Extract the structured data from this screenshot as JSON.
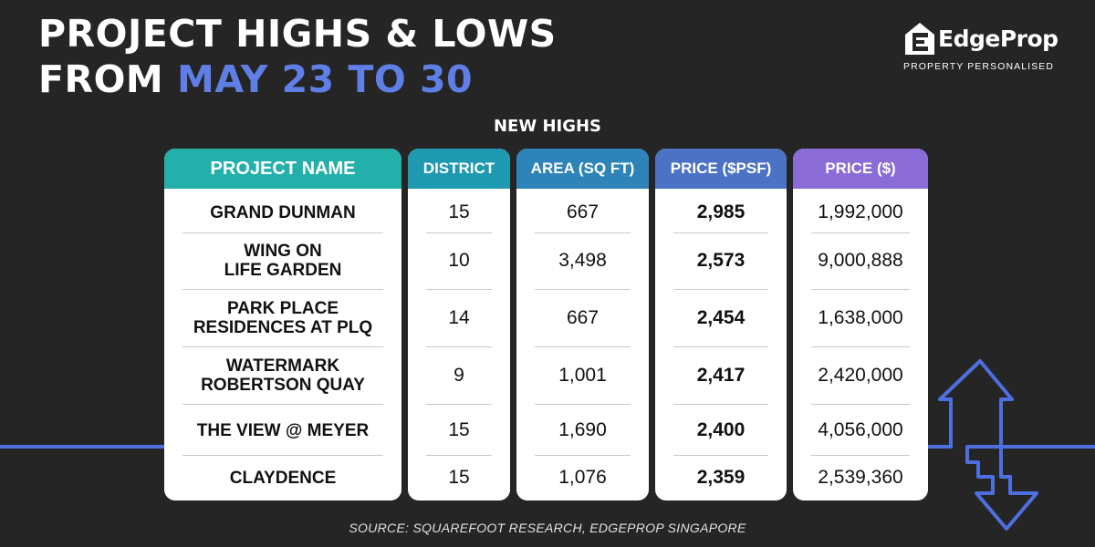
{
  "header": {
    "title_line1": "PROJECT HIGHS & LOWS",
    "title_line2_prefix": "FROM ",
    "title_line2_highlight": "MAY 23 TO 30"
  },
  "logo": {
    "name": "EdgeProp",
    "tagline": "PROPERTY PERSONALISED"
  },
  "table": {
    "title": "NEW HIGHS",
    "columns": [
      {
        "key": "project",
        "label": "PROJECT NAME",
        "color": "#23b0ab"
      },
      {
        "key": "district",
        "label": "DISTRICT",
        "color": "#1f99b0"
      },
      {
        "key": "area",
        "label": "AREA (SQ FT)",
        "color": "#2e83b8"
      },
      {
        "key": "psf",
        "label": "PRICE ($PSF)",
        "color": "#4c72c5"
      },
      {
        "key": "price",
        "label": "PRICE ($)",
        "color": "#8b6cd6"
      }
    ],
    "rows": [
      {
        "project": "GRAND DUNMAN",
        "district": "15",
        "area": "667",
        "psf": "2,985",
        "price": "1,992,000"
      },
      {
        "project": "WING ON\nLIFE GARDEN",
        "district": "10",
        "area": "3,498",
        "psf": "2,573",
        "price": "9,000,888"
      },
      {
        "project": "PARK PLACE\nRESIDENCES AT PLQ",
        "district": "14",
        "area": "667",
        "psf": "2,454",
        "price": "1,638,000"
      },
      {
        "project": "WATERMARK\nROBERTSON QUAY",
        "district": "9",
        "area": "1,001",
        "psf": "2,417",
        "price": "2,420,000"
      },
      {
        "project": "THE VIEW @ MEYER",
        "district": "15",
        "area": "1,690",
        "psf": "2,400",
        "price": "4,056,000"
      },
      {
        "project": "CLAYDENCE",
        "district": "15",
        "area": "1,076",
        "psf": "2,359",
        "price": "2,539,360"
      }
    ]
  },
  "source": "SOURCE: SQUAREFOOT RESEARCH, EDGEPROP SINGAPORE",
  "colors": {
    "background": "#252525",
    "accent_blue": "#5f7fe6",
    "line_blue": "#4d6fe0"
  },
  "icons": [
    "edgeprop-house-icon",
    "up-down-arrow-icon"
  ]
}
